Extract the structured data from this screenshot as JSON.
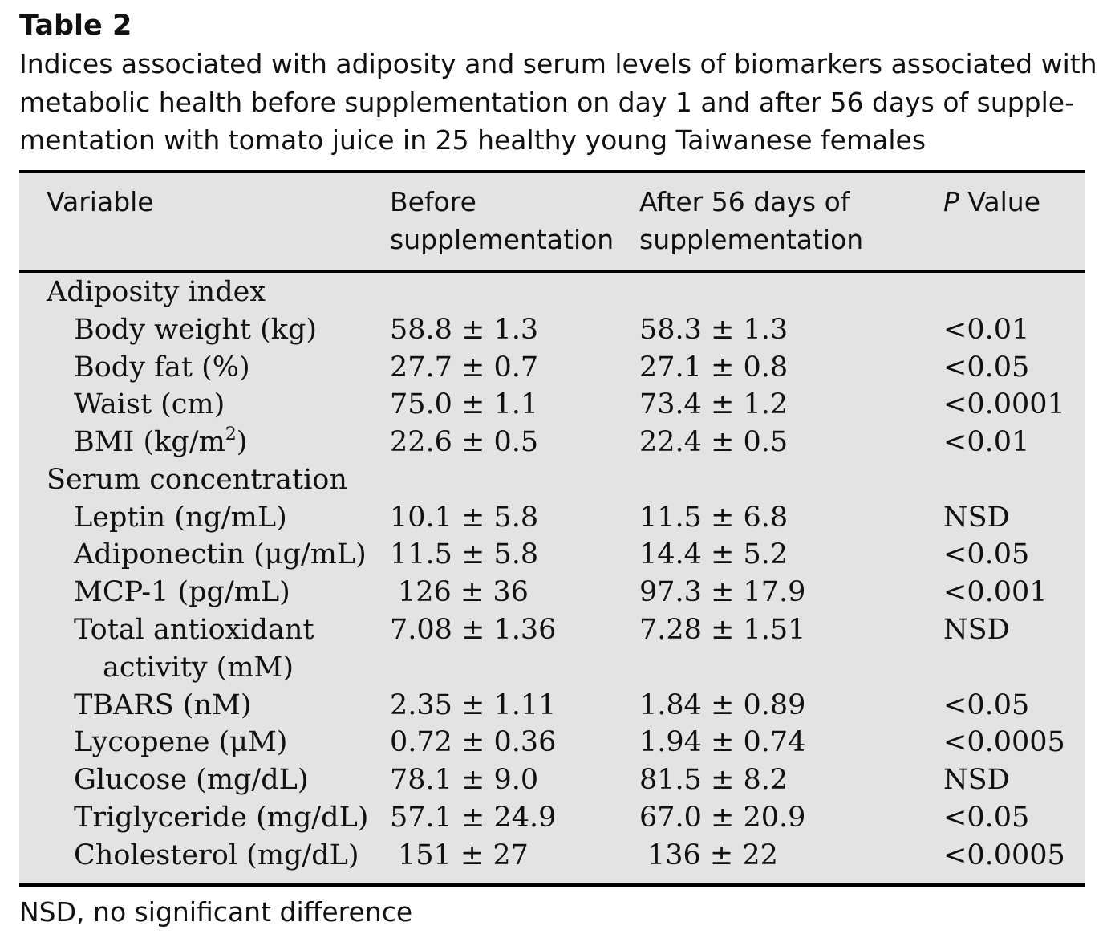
{
  "table": {
    "label": "Table 2",
    "caption_lines": [
      "Indices associated with adiposity and serum levels of biomarkers associated with",
      "metabolic health before supplementation on day 1 and after 56 days of supple-",
      "mentation with tomato juice in 25 healthy young Taiwanese females"
    ],
    "headers": {
      "variable": "Variable",
      "before_1": "Before",
      "before_2": "supplementation",
      "after_1": "After 56 days of",
      "after_2": "supplementation",
      "p_italic": "P",
      "p_rest": " Value"
    },
    "rows": [
      {
        "variable": "Adiposity index",
        "before": "",
        "after": "",
        "p": ""
      },
      {
        "variable": "Body weight (kg)",
        "before": "58.8 ± 1.3",
        "after": "58.3 ± 1.3",
        "p": "<0.01"
      },
      {
        "variable": "Body fat (%)",
        "before": "27.7 ± 0.7",
        "after": "27.1 ± 0.8",
        "p": "<0.05"
      },
      {
        "variable": "Waist (cm)",
        "before": "75.0 ± 1.1",
        "after": "73.4 ± 1.2",
        "p": "<0.0001"
      },
      {
        "variable": "BMI (kg/m",
        "variable_sup": "2",
        "variable_end": ")",
        "before": "22.6 ± 0.5",
        "after": "22.4 ± 0.5",
        "p": "<0.01"
      },
      {
        "variable": "Serum concentration",
        "before": "",
        "after": "",
        "p": ""
      },
      {
        "variable": "Leptin (ng/mL)",
        "before": "10.1 ± 5.8",
        "after": "11.5 ± 6.8",
        "p": "NSD"
      },
      {
        "variable": "Adiponectin (μg/mL)",
        "before": "11.5 ± 5.8",
        "after": "14.4 ± 5.2",
        "p": "<0.05"
      },
      {
        "variable": "MCP-1 (pg/mL)",
        "before": "126 ± 36",
        "after": "97.3 ± 17.9",
        "p": "<0.001"
      },
      {
        "variable": "Total antioxidant",
        "before": "7.08 ± 1.36",
        "after": "7.28 ± 1.51",
        "p": "NSD"
      },
      {
        "variable": "activity (mM)",
        "before": "",
        "after": "",
        "p": ""
      },
      {
        "variable": "TBARS (nM)",
        "before": "2.35 ± 1.11",
        "after": "1.84 ± 0.89",
        "p": "<0.05"
      },
      {
        "variable": "Lycopene (μM)",
        "before": "0.72 ± 0.36",
        "after": "1.94 ± 0.74",
        "p": "<0.0005"
      },
      {
        "variable": "Glucose (mg/dL)",
        "before": "78.1 ± 9.0",
        "after": "81.5 ± 8.2",
        "p": "NSD"
      },
      {
        "variable": "Triglyceride (mg/dL)",
        "before": "57.1 ± 24.9",
        "after": "67.0 ± 20.9",
        "p": "<0.05"
      },
      {
        "variable": "Cholesterol (mg/dL)",
        "before": "151 ± 27",
        "after": "136 ± 22",
        "p": "<0.0005"
      }
    ],
    "footnote": "NSD, no significant difference"
  }
}
